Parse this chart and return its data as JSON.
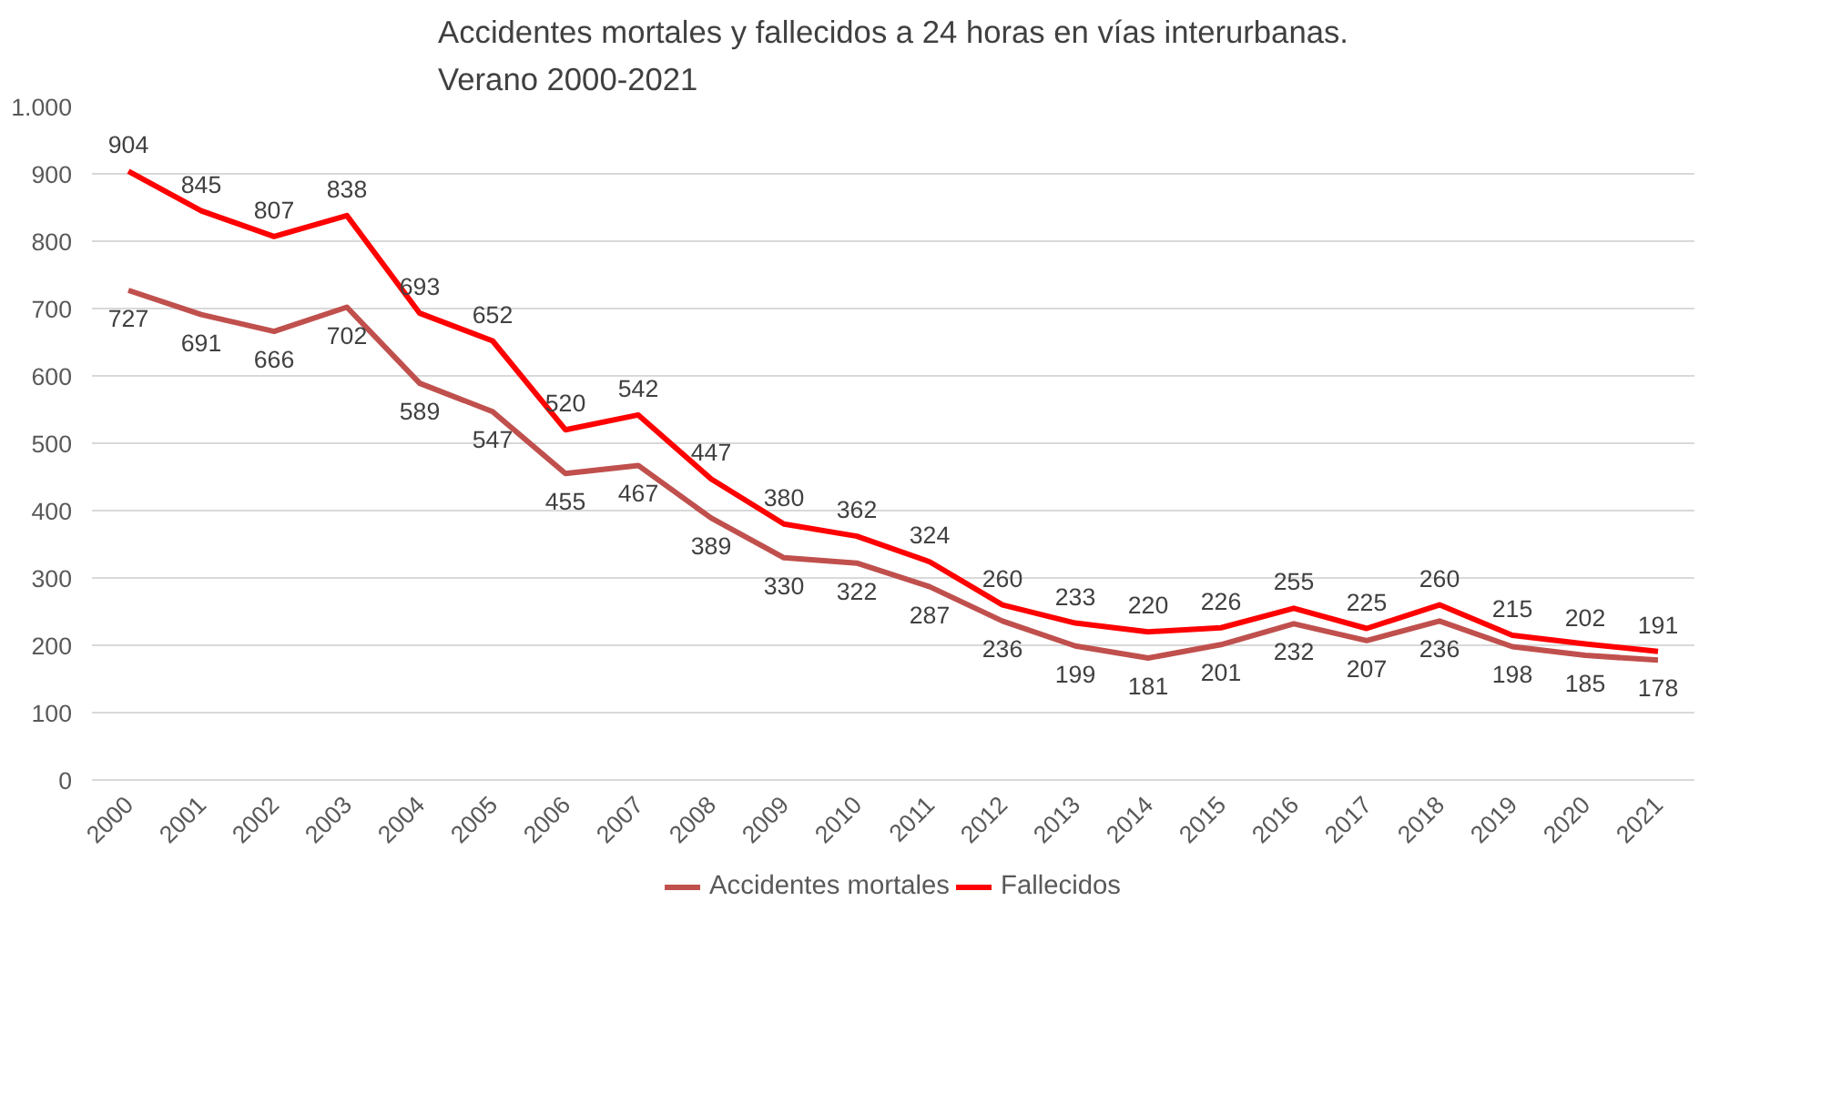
{
  "chart_data": {
    "type": "line",
    "title": "Accidentes mortales y fallecidos a 24 horas en vías interurbanas.\nVerano 2000-2021",
    "categories": [
      "2000",
      "2001",
      "2002",
      "2003",
      "2004",
      "2005",
      "2006",
      "2007",
      "2008",
      "2009",
      "2010",
      "2011",
      "2012",
      "2013",
      "2014",
      "2015",
      "2016",
      "2017",
      "2018",
      "2019",
      "2020",
      "2021"
    ],
    "series": [
      {
        "name": "Accidentes mortales",
        "color": "#c0504d",
        "values": [
          727,
          691,
          666,
          702,
          589,
          547,
          455,
          467,
          389,
          330,
          322,
          287,
          236,
          199,
          181,
          201,
          232,
          207,
          236,
          198,
          185,
          178
        ]
      },
      {
        "name": "Fallecidos",
        "color": "#ff0000",
        "values": [
          904,
          845,
          807,
          838,
          693,
          652,
          520,
          542,
          447,
          380,
          362,
          324,
          260,
          233,
          220,
          226,
          255,
          225,
          260,
          215,
          202,
          191
        ]
      }
    ],
    "ylim": [
      0,
      1000
    ],
    "yticks": [
      0,
      100,
      200,
      300,
      400,
      500,
      600,
      700,
      800,
      900,
      {
        "value": 1000,
        "label": "1.000"
      }
    ],
    "grid": "y",
    "legend": "bottom",
    "data_labels": true,
    "marker": "none",
    "line_style": "solid"
  }
}
